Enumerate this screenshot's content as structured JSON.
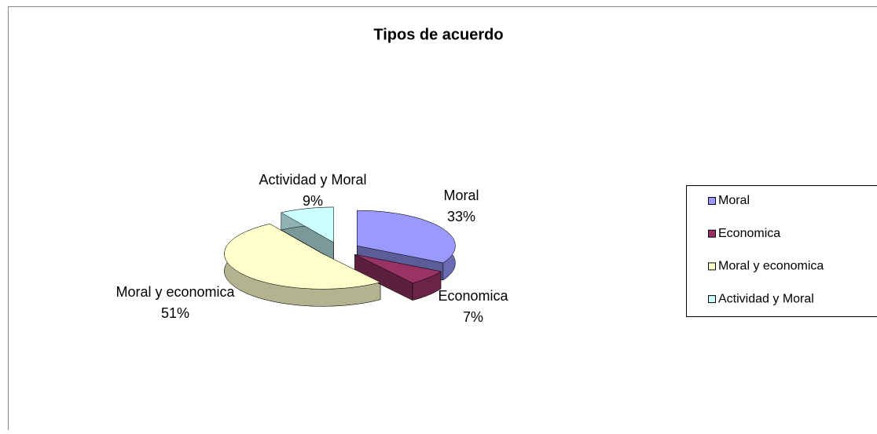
{
  "chart_data": {
    "type": "pie",
    "title": "Tipos de acuerdo",
    "categories": [
      "Moral",
      "Economica",
      "Moral y economica",
      "Actividad y Moral"
    ],
    "values": [
      33,
      7,
      51,
      9
    ],
    "value_labels": [
      "33%",
      "7%",
      "51%",
      "9%"
    ],
    "colors": [
      "#9999ff",
      "#993366",
      "#ffffcc",
      "#ccffff"
    ],
    "legend": "right"
  }
}
